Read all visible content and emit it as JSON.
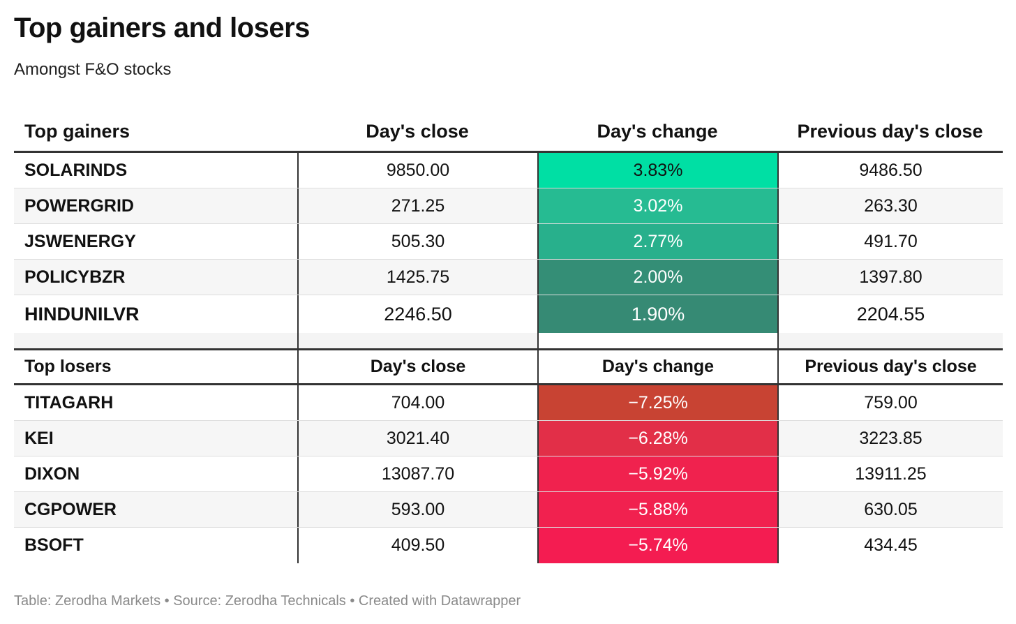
{
  "title": "Top gainers and losers",
  "subtitle": "Amongst F&O stocks",
  "footer": "Table: Zerodha Markets • Source: Zerodha Technicals • Created with Datawrapper",
  "chart_data": {
    "type": "table",
    "gainers": {
      "headers": [
        "Top gainers",
        "Day's close",
        "Day's change",
        "Previous day's close"
      ],
      "rows": [
        {
          "symbol": "SOLARINDS",
          "close": "9850.00",
          "change": "3.83%",
          "prev": "9486.50",
          "color": "#00dfa4"
        },
        {
          "symbol": "POWERGRID",
          "close": "271.25",
          "change": "3.02%",
          "prev": "263.30",
          "color": "#26bb92"
        },
        {
          "symbol": "JSWENERGY",
          "close": "505.30",
          "change": "2.77%",
          "prev": "491.70",
          "color": "#28b08c"
        },
        {
          "symbol": "POLICYBZR",
          "close": "1425.75",
          "change": "2.00%",
          "prev": "1397.80",
          "color": "#348e76"
        },
        {
          "symbol": "HINDUNILVR",
          "close": "2246.50",
          "change": "1.90%",
          "prev": "2204.55",
          "color": "#368a74"
        }
      ]
    },
    "losers": {
      "headers": [
        "Top losers",
        "Day's close",
        "Day's change",
        "Previous day's close"
      ],
      "rows": [
        {
          "symbol": "TITAGARH",
          "close": "704.00",
          "change": "−7.25%",
          "prev": "759.00",
          "color": "#c84333"
        },
        {
          "symbol": "KEI",
          "close": "3021.40",
          "change": "−6.28%",
          "prev": "3223.85",
          "color": "#e22f48"
        },
        {
          "symbol": "DIXON",
          "close": "13087.70",
          "change": "−5.92%",
          "prev": "13911.25",
          "color": "#f0224e"
        },
        {
          "symbol": "CGPOWER",
          "close": "593.00",
          "change": "−5.88%",
          "prev": "630.05",
          "color": "#f1214f"
        },
        {
          "symbol": "BSOFT",
          "close": "409.50",
          "change": "−5.74%",
          "prev": "434.45",
          "color": "#f41c51"
        }
      ]
    }
  }
}
